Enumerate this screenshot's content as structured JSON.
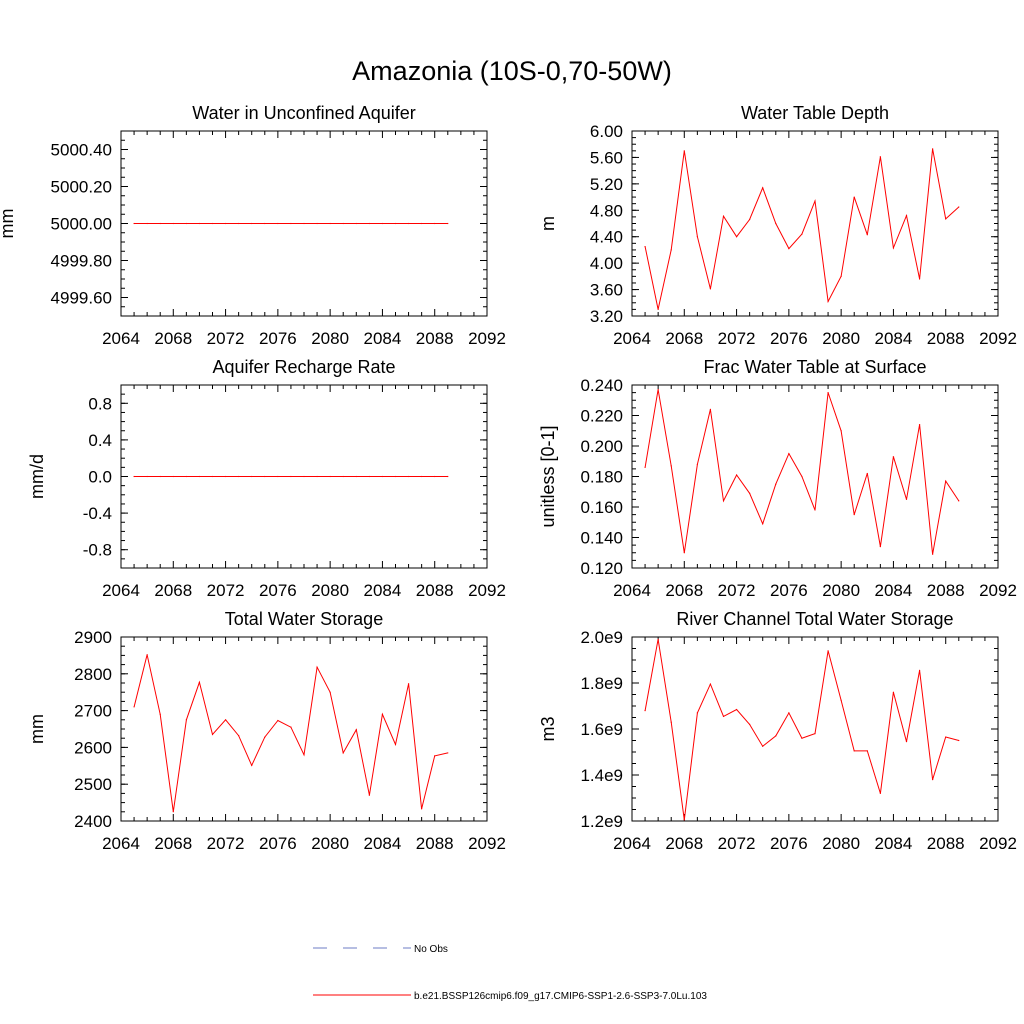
{
  "title": "Amazonia (10S-0,70-50W)",
  "line_color": "#ff0000",
  "obs_color": "#6c7dc4",
  "legend": {
    "entries": [
      {
        "label": "No Obs",
        "style": "dashed"
      },
      {
        "label": "b.e21.BSSP126cmip6.f09_g17.CMIP6-SSP1-2.6-SSP3-7.0Lu.103",
        "style": "solid"
      }
    ]
  },
  "chart_data": [
    {
      "type": "line",
      "title": "Water in Unconfined Aquifer",
      "ylabel": "mm",
      "xlim": [
        2064,
        2092
      ],
      "xticks": [
        "2064",
        "2068",
        "2072",
        "2076",
        "2080",
        "2084",
        "2088",
        "2092"
      ],
      "ylim": [
        4999.5,
        5000.5
      ],
      "yticks": [
        "4999.60",
        "4999.80",
        "5000.00",
        "5000.20",
        "5000.40"
      ],
      "x": [
        2065,
        2066,
        2067,
        2068,
        2069,
        2070,
        2071,
        2072,
        2073,
        2074,
        2075,
        2076,
        2077,
        2078,
        2079,
        2080,
        2081,
        2082,
        2083,
        2084,
        2085,
        2086,
        2087,
        2088,
        2089
      ],
      "values": [
        5000,
        5000,
        5000,
        5000,
        5000,
        5000,
        5000,
        5000,
        5000,
        5000,
        5000,
        5000,
        5000,
        5000,
        5000,
        5000,
        5000,
        5000,
        5000,
        5000,
        5000,
        5000,
        5000,
        5000,
        5000
      ]
    },
    {
      "type": "line",
      "title": "Water Table Depth",
      "ylabel": "m",
      "xlim": [
        2064,
        2092
      ],
      "xticks": [
        "2064",
        "2068",
        "2072",
        "2076",
        "2080",
        "2084",
        "2088",
        "2092"
      ],
      "ylim": [
        3.2,
        6.0
      ],
      "yticks": [
        "3.20",
        "3.60",
        "4.00",
        "4.40",
        "4.80",
        "5.20",
        "5.60",
        "6.00"
      ],
      "x": [
        2065,
        2066,
        2067,
        2068,
        2069,
        2070,
        2071,
        2072,
        2073,
        2074,
        2075,
        2076,
        2077,
        2078,
        2079,
        2080,
        2081,
        2082,
        2083,
        2084,
        2085,
        2086,
        2087,
        2088,
        2089
      ],
      "values": [
        4.25,
        3.3,
        4.2,
        5.7,
        4.4,
        3.61,
        4.71,
        4.4,
        4.66,
        5.14,
        4.6,
        4.22,
        4.44,
        4.94,
        3.42,
        3.8,
        5.0,
        4.43,
        5.61,
        4.23,
        4.72,
        3.76,
        5.73,
        4.67,
        4.85
      ]
    },
    {
      "type": "line",
      "title": "Aquifer Recharge Rate",
      "ylabel": "mm/d",
      "xlim": [
        2064,
        2092
      ],
      "xticks": [
        "2064",
        "2068",
        "2072",
        "2076",
        "2080",
        "2084",
        "2088",
        "2092"
      ],
      "ylim": [
        -1.0,
        1.0
      ],
      "yticks": [
        "-0.8",
        "-0.4",
        "0.0",
        "0.4",
        "0.8"
      ],
      "x": [
        2065,
        2066,
        2067,
        2068,
        2069,
        2070,
        2071,
        2072,
        2073,
        2074,
        2075,
        2076,
        2077,
        2078,
        2079,
        2080,
        2081,
        2082,
        2083,
        2084,
        2085,
        2086,
        2087,
        2088,
        2089
      ],
      "values": [
        0,
        0,
        0,
        0,
        0,
        0,
        0,
        0,
        0,
        0,
        0,
        0,
        0,
        0,
        0,
        0,
        0,
        0,
        0,
        0,
        0,
        0,
        0,
        0,
        0
      ]
    },
    {
      "type": "line",
      "title": "Frac Water Table at Surface",
      "ylabel": "unitless [0-1]",
      "xlim": [
        2064,
        2092
      ],
      "xticks": [
        "2064",
        "2068",
        "2072",
        "2076",
        "2080",
        "2084",
        "2088",
        "2092"
      ],
      "ylim": [
        0.12,
        0.24
      ],
      "yticks": [
        "0.120",
        "0.140",
        "0.160",
        "0.180",
        "0.200",
        "0.220",
        "0.240"
      ],
      "x": [
        2065,
        2066,
        2067,
        2068,
        2069,
        2070,
        2071,
        2072,
        2073,
        2074,
        2075,
        2076,
        2077,
        2078,
        2079,
        2080,
        2081,
        2082,
        2083,
        2084,
        2085,
        2086,
        2087,
        2088,
        2089
      ],
      "values": [
        0.186,
        0.237,
        0.187,
        0.13,
        0.188,
        0.224,
        0.164,
        0.181,
        0.169,
        0.149,
        0.175,
        0.195,
        0.18,
        0.158,
        0.235,
        0.21,
        0.155,
        0.182,
        0.134,
        0.193,
        0.165,
        0.214,
        0.129,
        0.177,
        0.164
      ]
    },
    {
      "type": "line",
      "title": "Total Water Storage",
      "ylabel": "mm",
      "xlim": [
        2064,
        2092
      ],
      "xticks": [
        "2064",
        "2068",
        "2072",
        "2076",
        "2080",
        "2084",
        "2088",
        "2092"
      ],
      "ylim": [
        2400,
        2900
      ],
      "yticks": [
        "2400",
        "2500",
        "2600",
        "2700",
        "2800",
        "2900"
      ],
      "x": [
        2065,
        2066,
        2067,
        2068,
        2069,
        2070,
        2071,
        2072,
        2073,
        2074,
        2075,
        2076,
        2077,
        2078,
        2079,
        2080,
        2081,
        2082,
        2083,
        2084,
        2085,
        2086,
        2087,
        2088,
        2089
      ],
      "values": [
        2710,
        2852,
        2690,
        2425,
        2675,
        2777,
        2635,
        2675,
        2632,
        2551,
        2628,
        2673,
        2655,
        2580,
        2818,
        2750,
        2585,
        2648,
        2470,
        2690,
        2608,
        2773,
        2433,
        2577,
        2585
      ]
    },
    {
      "type": "line",
      "title": "River Channel Total Water Storage",
      "ylabel": "m3",
      "xlim": [
        2064,
        2092
      ],
      "xticks": [
        "2064",
        "2068",
        "2072",
        "2076",
        "2080",
        "2084",
        "2088",
        "2092"
      ],
      "ylim": [
        1200000000.0,
        2000000000.0
      ],
      "yticks": [
        "1.2e9",
        "1.4e9",
        "1.6e9",
        "1.8e9",
        "2.0e9"
      ],
      "x": [
        2065,
        2066,
        2067,
        2068,
        2069,
        2070,
        2071,
        2072,
        2073,
        2074,
        2075,
        2076,
        2077,
        2078,
        2079,
        2080,
        2081,
        2082,
        2083,
        2084,
        2085,
        2086,
        2087,
        2088,
        2089
      ],
      "values": [
        1680000000.0,
        1990000000.0,
        1630000000.0,
        1205000000.0,
        1670000000.0,
        1795000000.0,
        1655000000.0,
        1685000000.0,
        1620000000.0,
        1525000000.0,
        1570000000.0,
        1670000000.0,
        1560000000.0,
        1580000000.0,
        1940000000.0,
        1725000000.0,
        1505000000.0,
        1505000000.0,
        1320000000.0,
        1760000000.0,
        1545000000.0,
        1855000000.0,
        1380000000.0,
        1565000000.0,
        1550000000.0
      ]
    }
  ]
}
